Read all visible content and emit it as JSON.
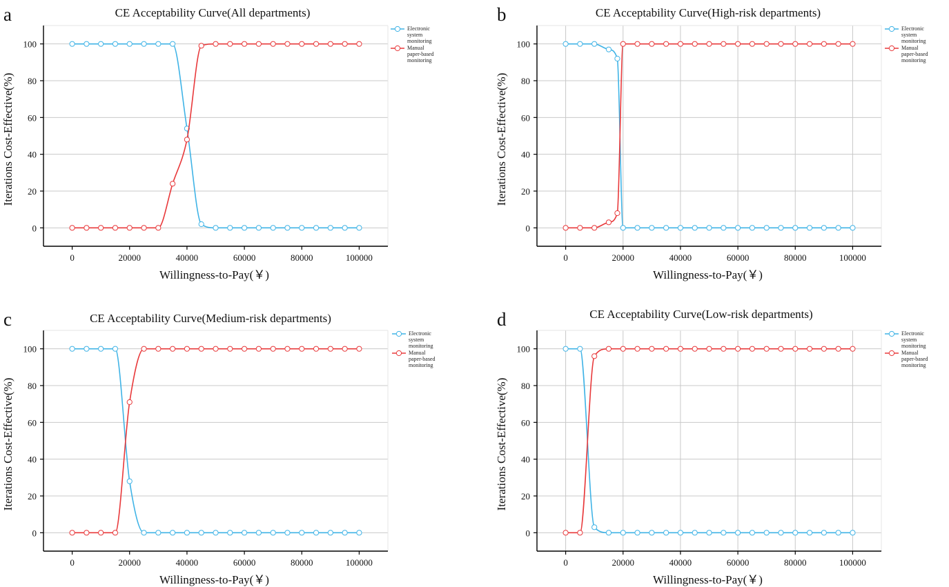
{
  "colors": {
    "electronic": "#3fb3e6",
    "manual": "#e8383a",
    "grid": "#c8c8c8",
    "axis": "#000000"
  },
  "icon": "circle-marker",
  "chart_data": [
    {
      "panel": "a",
      "type": "line",
      "title": "CE Acceptability Curve(All departments)",
      "xlabel": "Willingness-to-Pay(￥)",
      "ylabel": "Iterations Cost-Effective(%)",
      "xlim": [
        -10000,
        110000
      ],
      "ylim": [
        -10,
        110
      ],
      "xticks": [
        0,
        20000,
        40000,
        60000,
        80000,
        100000
      ],
      "yticks": [
        0,
        20,
        40,
        60,
        80,
        100
      ],
      "grid": "horizontal",
      "legend": "right",
      "series": [
        {
          "name": [
            "Electronic",
            "system",
            "monitoring"
          ],
          "key": "electronic",
          "x": [
            0,
            5000,
            10000,
            15000,
            20000,
            25000,
            30000,
            35000,
            40000,
            45000,
            50000,
            55000,
            60000,
            65000,
            70000,
            75000,
            80000,
            85000,
            90000,
            95000,
            100000
          ],
          "values": [
            100,
            100,
            100,
            100,
            100,
            100,
            100,
            100,
            54,
            2,
            0,
            0,
            0,
            0,
            0,
            0,
            0,
            0,
            0,
            0,
            0
          ]
        },
        {
          "name": [
            "Manual",
            "paper-based",
            "monitoring"
          ],
          "key": "manual",
          "x": [
            0,
            5000,
            10000,
            15000,
            20000,
            25000,
            30000,
            35000,
            40000,
            45000,
            50000,
            55000,
            60000,
            65000,
            70000,
            75000,
            80000,
            85000,
            90000,
            95000,
            100000
          ],
          "values": [
            0,
            0,
            0,
            0,
            0,
            0,
            0,
            24,
            48,
            99,
            100,
            100,
            100,
            100,
            100,
            100,
            100,
            100,
            100,
            100,
            100
          ]
        }
      ]
    },
    {
      "panel": "b",
      "type": "line",
      "title": "CE Acceptability Curve(High-risk departments)",
      "xlabel": "Willingness-to-Pay(￥)",
      "ylabel": "Iterations Cost-Effective(%)",
      "xlim": [
        -10000,
        110000
      ],
      "ylim": [
        -10,
        110
      ],
      "xticks": [
        0,
        20000,
        40000,
        60000,
        80000,
        100000
      ],
      "yticks": [
        0,
        20,
        40,
        60,
        80,
        100
      ],
      "grid": "both",
      "legend": "right",
      "series": [
        {
          "name": [
            "Electronic",
            "system",
            "monitoring"
          ],
          "key": "electronic",
          "x": [
            0,
            5000,
            10000,
            15000,
            18000,
            20000,
            25000,
            30000,
            35000,
            40000,
            45000,
            50000,
            55000,
            60000,
            65000,
            70000,
            75000,
            80000,
            85000,
            90000,
            95000,
            100000
          ],
          "values": [
            100,
            100,
            100,
            97,
            92,
            0,
            0,
            0,
            0,
            0,
            0,
            0,
            0,
            0,
            0,
            0,
            0,
            0,
            0,
            0,
            0,
            0
          ]
        },
        {
          "name": [
            "Manual",
            "paper-based",
            "monitoring"
          ],
          "key": "manual",
          "x": [
            0,
            5000,
            10000,
            15000,
            18000,
            20000,
            25000,
            30000,
            35000,
            40000,
            45000,
            50000,
            55000,
            60000,
            65000,
            70000,
            75000,
            80000,
            85000,
            90000,
            95000,
            100000
          ],
          "values": [
            0,
            0,
            0,
            3,
            8,
            100,
            100,
            100,
            100,
            100,
            100,
            100,
            100,
            100,
            100,
            100,
            100,
            100,
            100,
            100,
            100,
            100
          ]
        }
      ]
    },
    {
      "panel": "c",
      "type": "line",
      "title": "CE Acceptability Curve(Medium-risk departments)",
      "xlabel": "Willingness-to-Pay(￥)",
      "ylabel": "Iterations Cost-Effective(%)",
      "xlim": [
        -10000,
        110000
      ],
      "ylim": [
        -10,
        110
      ],
      "xticks": [
        0,
        20000,
        40000,
        60000,
        80000,
        100000
      ],
      "yticks": [
        0,
        20,
        40,
        60,
        80,
        100
      ],
      "grid": "horizontal",
      "legend": "right",
      "series": [
        {
          "name": [
            "Electronic",
            "system",
            "monitoring"
          ],
          "key": "electronic",
          "x": [
            0,
            5000,
            10000,
            15000,
            20000,
            25000,
            30000,
            35000,
            40000,
            45000,
            50000,
            55000,
            60000,
            65000,
            70000,
            75000,
            80000,
            85000,
            90000,
            95000,
            100000
          ],
          "values": [
            100,
            100,
            100,
            100,
            28,
            0,
            0,
            0,
            0,
            0,
            0,
            0,
            0,
            0,
            0,
            0,
            0,
            0,
            0,
            0,
            0
          ]
        },
        {
          "name": [
            "Manual",
            "paper-based",
            "monitoring"
          ],
          "key": "manual",
          "x": [
            0,
            5000,
            10000,
            15000,
            20000,
            25000,
            30000,
            35000,
            40000,
            45000,
            50000,
            55000,
            60000,
            65000,
            70000,
            75000,
            80000,
            85000,
            90000,
            95000,
            100000
          ],
          "values": [
            0,
            0,
            0,
            0,
            71,
            100,
            100,
            100,
            100,
            100,
            100,
            100,
            100,
            100,
            100,
            100,
            100,
            100,
            100,
            100,
            100
          ]
        }
      ]
    },
    {
      "panel": "d",
      "type": "line",
      "title": "CE Acceptability Curve(Low-risk departments)",
      "xlabel": "Willingness-to-Pay(￥)",
      "ylabel": "Iterations Cost-Effective(%)",
      "xlim": [
        -10000,
        110000
      ],
      "ylim": [
        -10,
        110
      ],
      "xticks": [
        0,
        20000,
        40000,
        60000,
        80000,
        100000
      ],
      "yticks": [
        0,
        20,
        40,
        60,
        80,
        100
      ],
      "grid": "both",
      "legend": "right",
      "series": [
        {
          "name": [
            "Electronic",
            "system",
            "monitoring"
          ],
          "key": "electronic",
          "x": [
            0,
            5000,
            10000,
            15000,
            20000,
            25000,
            30000,
            35000,
            40000,
            45000,
            50000,
            55000,
            60000,
            65000,
            70000,
            75000,
            80000,
            85000,
            90000,
            95000,
            100000
          ],
          "values": [
            100,
            100,
            3,
            0,
            0,
            0,
            0,
            0,
            0,
            0,
            0,
            0,
            0,
            0,
            0,
            0,
            0,
            0,
            0,
            0,
            0
          ]
        },
        {
          "name": [
            "Manual",
            "paper-based",
            "monitoring"
          ],
          "key": "manual",
          "x": [
            0,
            5000,
            10000,
            15000,
            20000,
            25000,
            30000,
            35000,
            40000,
            45000,
            50000,
            55000,
            60000,
            65000,
            70000,
            75000,
            80000,
            85000,
            90000,
            95000,
            100000
          ],
          "values": [
            0,
            0,
            96,
            100,
            100,
            100,
            100,
            100,
            100,
            100,
            100,
            100,
            100,
            100,
            100,
            100,
            100,
            100,
            100,
            100,
            100
          ]
        }
      ]
    }
  ]
}
